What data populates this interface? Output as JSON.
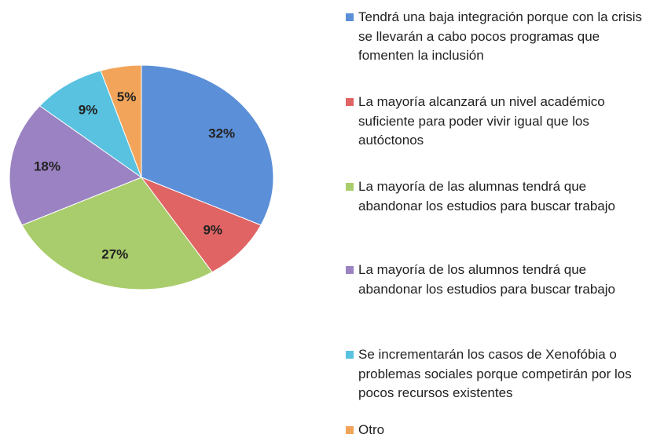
{
  "chart_data": {
    "type": "pie",
    "categories": [
      "Tendrá una baja integración porque con la crisis se llevarán a cabo pocos programas que fomenten la inclusión",
      "La mayoría alcanzará un nivel académico suficiente para poder vivir igual que los autóctonos",
      "La mayoría de las alumnas tendrá que abandonar los estudios para buscar trabajo",
      "La mayoría de los alumnos tendrá que abandonar los estudios para buscar trabajo",
      "Se incrementarán los casos de Xenofóbia o problemas sociales porque competirán por los pocos recursos existentes",
      "Otro"
    ],
    "values": [
      32,
      9,
      27,
      18,
      9,
      5
    ],
    "value_labels": [
      "32%",
      "9%",
      "27%",
      "18%",
      "9%",
      "5%"
    ],
    "colors": [
      "#5b8fd8",
      "#e06464",
      "#a9cd6c",
      "#9b82c2",
      "#58c2e0",
      "#f2a55a"
    ],
    "legend": "right"
  }
}
